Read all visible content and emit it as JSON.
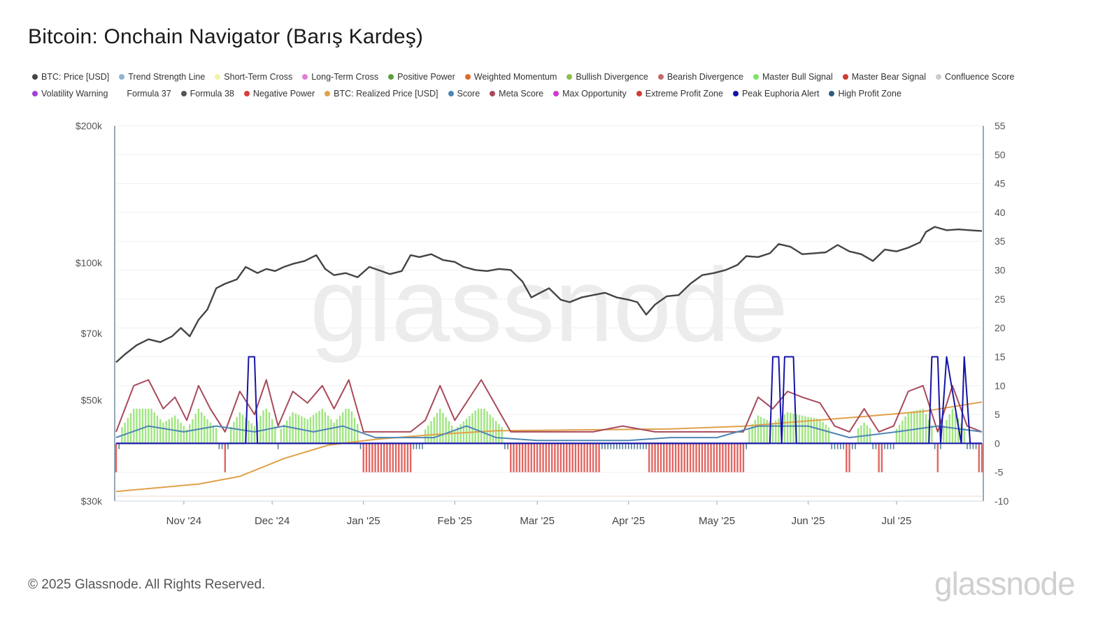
{
  "title": "Bitcoin: Onchain Navigator (Barış Kardeş)",
  "footer": "© 2025 Glassnode. All Rights Reserved.",
  "brand": "glassnode",
  "watermark": "glassnode",
  "legend_rows": [
    [
      {
        "label": "BTC: Price [USD]",
        "color": "#444444"
      },
      {
        "label": "Trend Strength Line",
        "color": "#8fb4cf"
      },
      {
        "label": "Short-Term Cross",
        "color": "#f1f3a0"
      },
      {
        "label": "Long-Term Cross",
        "color": "#df7fd6"
      },
      {
        "label": "Positive Power",
        "color": "#5f9e3c"
      },
      {
        "label": "Weighted Momentum",
        "color": "#e06a2c"
      },
      {
        "label": "Bullish Divergence",
        "color": "#8cbf4a"
      },
      {
        "label": "Bearish Divergence",
        "color": "#c06b6b"
      },
      {
        "label": "Master Bull Signal",
        "color": "#7ee36a"
      },
      {
        "label": "Master Bear Signal",
        "color": "#cf3b35"
      },
      {
        "label": "Confluence Score",
        "color": "#cccccc"
      }
    ],
    [
      {
        "label": "Volatility Warning",
        "color": "#a23fd6"
      },
      {
        "label": "Formula 37",
        "color": ""
      },
      {
        "label": "Formula 38",
        "color": "#555555"
      },
      {
        "label": "Negative Power",
        "color": "#d8403a"
      },
      {
        "label": "BTC: Realized Price [USD]",
        "color": "#e0a14a"
      },
      {
        "label": "Score",
        "color": "#4f86b3"
      },
      {
        "label": "Meta Score",
        "color": "#a84a5a"
      },
      {
        "label": "Max Opportunity",
        "color": "#cf3bd0"
      },
      {
        "label": "Extreme Profit Zone",
        "color": "#d23c32"
      },
      {
        "label": "Peak Euphoria Alert",
        "color": "#1414a8"
      },
      {
        "label": "High Profit Zone",
        "color": "#2f5e7e"
      }
    ]
  ],
  "chart_data": {
    "type": "line",
    "x_range": [
      "2024-10-09",
      "2025-07-30"
    ],
    "x_ticks": [
      "Nov '24",
      "Dec '24",
      "Jan '25",
      "Feb '25",
      "Mar '25",
      "Apr '25",
      "May '25",
      "Jun '25",
      "Jul '25"
    ],
    "y_left": {
      "scale": "log",
      "range": [
        30000,
        200000
      ],
      "ticks": [
        "$200k",
        "$100k",
        "$70k",
        "$50k",
        "$30k"
      ],
      "tick_values": [
        200000,
        100000,
        70000,
        50000,
        30000
      ]
    },
    "y_right": {
      "scale": "linear",
      "range": [
        -10,
        55
      ],
      "ticks": [
        "55",
        "50",
        "45",
        "40",
        "35",
        "30",
        "25",
        "20",
        "15",
        "10",
        "5",
        "0",
        "-5",
        "-10"
      ]
    },
    "series": [
      {
        "name": "BTC: Price [USD]",
        "axis": "left",
        "color": "#444444",
        "x": [
          "2024-10-09",
          "2024-10-12",
          "2024-10-16",
          "2024-10-20",
          "2024-10-24",
          "2024-10-28",
          "2024-10-31",
          "2024-11-03",
          "2024-11-06",
          "2024-11-09",
          "2024-11-12",
          "2024-11-15",
          "2024-11-19",
          "2024-11-22",
          "2024-11-26",
          "2024-11-29",
          "2024-12-02",
          "2024-12-05",
          "2024-12-08",
          "2024-12-12",
          "2024-12-16",
          "2024-12-19",
          "2024-12-22",
          "2024-12-26",
          "2024-12-30",
          "2025-01-03",
          "2025-01-07",
          "2025-01-10",
          "2025-01-14",
          "2025-01-17",
          "2025-01-20",
          "2025-01-24",
          "2025-01-28",
          "2025-02-01",
          "2025-02-04",
          "2025-02-08",
          "2025-02-12",
          "2025-02-16",
          "2025-02-20",
          "2025-02-24",
          "2025-02-27",
          "2025-03-02",
          "2025-03-05",
          "2025-03-09",
          "2025-03-12",
          "2025-03-16",
          "2025-03-20",
          "2025-03-24",
          "2025-03-28",
          "2025-04-01",
          "2025-04-04",
          "2025-04-07",
          "2025-04-10",
          "2025-04-14",
          "2025-04-18",
          "2025-04-22",
          "2025-04-26",
          "2025-04-30",
          "2025-05-04",
          "2025-05-08",
          "2025-05-11",
          "2025-05-15",
          "2025-05-19",
          "2025-05-22",
          "2025-05-26",
          "2025-05-30",
          "2025-06-03",
          "2025-06-07",
          "2025-06-11",
          "2025-06-15",
          "2025-06-19",
          "2025-06-23",
          "2025-06-27",
          "2025-07-01",
          "2025-07-05",
          "2025-07-09",
          "2025-07-11",
          "2025-07-14",
          "2025-07-18",
          "2025-07-22",
          "2025-07-26",
          "2025-07-30"
        ],
        "values": [
          60500,
          63000,
          66000,
          68000,
          67000,
          69000,
          72000,
          69000,
          75000,
          79000,
          88000,
          90000,
          92000,
          98000,
          95000,
          97000,
          96000,
          98000,
          99500,
          101000,
          104000,
          97000,
          94000,
          95000,
          93000,
          98000,
          96000,
          94500,
          96000,
          104000,
          103000,
          104500,
          101500,
          100500,
          98000,
          96500,
          96000,
          97000,
          96500,
          91000,
          84000,
          86000,
          88000,
          83000,
          82000,
          84000,
          85000,
          86000,
          84000,
          83000,
          82000,
          77000,
          81000,
          84500,
          85000,
          90000,
          94000,
          95000,
          96500,
          99000,
          103500,
          103000,
          105000,
          110000,
          108500,
          104500,
          105000,
          105500,
          109500,
          106000,
          104500,
          101000,
          107000,
          106000,
          108000,
          111000,
          117000,
          120000,
          118000,
          118500,
          118000,
          117500
        ]
      },
      {
        "name": "BTC: Realized Price [USD]",
        "axis": "left",
        "color": "#e0a14a",
        "x": [
          "2024-10-09",
          "2024-11-06",
          "2024-11-20",
          "2024-12-05",
          "2024-12-20",
          "2025-01-05",
          "2025-01-25",
          "2025-02-15",
          "2025-03-15",
          "2025-04-15",
          "2025-05-10",
          "2025-06-01",
          "2025-06-20",
          "2025-07-10",
          "2025-07-30"
        ],
        "values": [
          31500,
          32700,
          34000,
          37200,
          39800,
          41000,
          42000,
          42800,
          43000,
          43200,
          43800,
          45000,
          46000,
          47200,
          49500
        ]
      },
      {
        "name": "Meta Score",
        "axis": "right",
        "color": "#a84a5a",
        "x": [
          "2024-10-09",
          "2024-10-15",
          "2024-10-20",
          "2024-10-25",
          "2024-10-29",
          "2024-11-02",
          "2024-11-06",
          "2024-11-10",
          "2024-11-15",
          "2024-11-20",
          "2024-11-25",
          "2024-11-29",
          "2024-12-03",
          "2024-12-08",
          "2024-12-13",
          "2024-12-18",
          "2024-12-22",
          "2024-12-27",
          "2025-01-01",
          "2025-01-07",
          "2025-01-12",
          "2025-01-17",
          "2025-01-22",
          "2025-01-27",
          "2025-02-01",
          "2025-02-10",
          "2025-02-20",
          "2025-03-01",
          "2025-03-10",
          "2025-03-20",
          "2025-03-30",
          "2025-04-10",
          "2025-04-20",
          "2025-04-30",
          "2025-05-05",
          "2025-05-10",
          "2025-05-15",
          "2025-05-20",
          "2025-05-25",
          "2025-05-30",
          "2025-06-05",
          "2025-06-10",
          "2025-06-15",
          "2025-06-20",
          "2025-06-25",
          "2025-06-30",
          "2025-07-05",
          "2025-07-10",
          "2025-07-15",
          "2025-07-20",
          "2025-07-25",
          "2025-07-30"
        ],
        "values": [
          2,
          10,
          11,
          6,
          8,
          4,
          10,
          6,
          2,
          9,
          5,
          11,
          3,
          9,
          7,
          10,
          6,
          11,
          2,
          2,
          2,
          2,
          4,
          10,
          4,
          11,
          2,
          2,
          2,
          2,
          3,
          2,
          2,
          2,
          2,
          2,
          8,
          6,
          9,
          8,
          7,
          3,
          2,
          6,
          2,
          3,
          9,
          10,
          2,
          10,
          3,
          2
        ]
      },
      {
        "name": "Score",
        "axis": "right",
        "color": "#4f86b3",
        "x": [
          "2024-10-09",
          "2024-10-20",
          "2024-11-01",
          "2024-11-12",
          "2024-11-25",
          "2024-12-05",
          "2024-12-15",
          "2024-12-25",
          "2025-01-05",
          "2025-01-15",
          "2025-01-25",
          "2025-02-05",
          "2025-02-15",
          "2025-03-01",
          "2025-03-15",
          "2025-04-01",
          "2025-04-15",
          "2025-05-01",
          "2025-05-15",
          "2025-06-01",
          "2025-06-15",
          "2025-07-01",
          "2025-07-15",
          "2025-07-30"
        ],
        "values": [
          1,
          3,
          2,
          3,
          2,
          3,
          2,
          3,
          1,
          1,
          1,
          3,
          1,
          0.5,
          0.5,
          0.5,
          1,
          1,
          3,
          3,
          1,
          2,
          3,
          2
        ]
      },
      {
        "name": "Peak Euphoria Alert",
        "axis": "right",
        "color": "#1414a8",
        "x": [
          "2024-10-09",
          "2024-11-22",
          "2024-11-23",
          "2024-11-25",
          "2024-11-26",
          "2025-05-19",
          "2025-05-20",
          "2025-05-22",
          "2025-05-23",
          "2025-05-24",
          "2025-05-27",
          "2025-05-28",
          "2025-07-12",
          "2025-07-13",
          "2025-07-15",
          "2025-07-16",
          "2025-07-18",
          "2025-07-23",
          "2025-07-24",
          "2025-07-26",
          "2025-07-30"
        ],
        "values": [
          0,
          0,
          15,
          15,
          0,
          0,
          15,
          15,
          0,
          15,
          15,
          0,
          0,
          15,
          15,
          0,
          15,
          0,
          15,
          0,
          0
        ]
      }
    ]
  }
}
